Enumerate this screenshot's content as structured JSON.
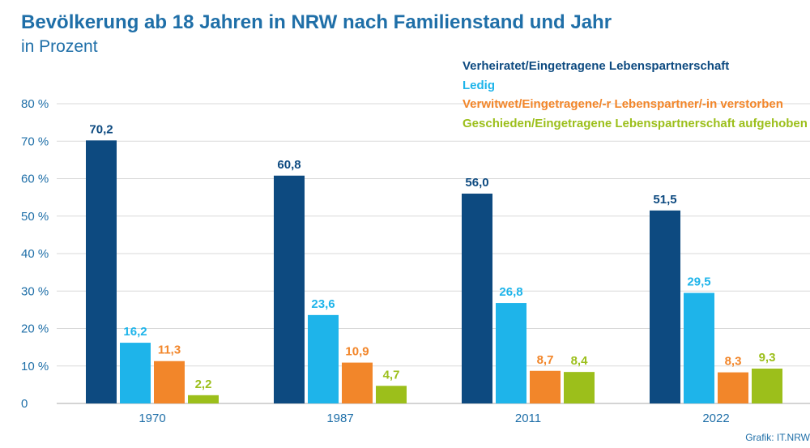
{
  "chart_data": {
    "type": "bar",
    "title": "Bevölkerung ab 18 Jahren in NRW nach Familienstand und Jahr",
    "subtitle": "in Prozent",
    "categories": [
      "1970",
      "1987",
      "2011",
      "2022"
    ],
    "series": [
      {
        "name": "Verheiratet/Eingetragene Lebenspartnerschaft",
        "color": "#0d4a80",
        "values": [
          70.2,
          60.8,
          56.0,
          51.5
        ],
        "labels": [
          "70,2",
          "60,8",
          "56,0",
          "51,5"
        ]
      },
      {
        "name": "Ledig",
        "color": "#1eb4ea",
        "values": [
          16.2,
          23.6,
          26.8,
          29.5
        ],
        "labels": [
          "16,2",
          "23,6",
          "26,8",
          "29,5"
        ]
      },
      {
        "name": "Verwitwet/Eingetragene/-r Lebenspartner/-in verstorben",
        "color": "#f2862a",
        "values": [
          11.3,
          10.9,
          8.7,
          8.3
        ],
        "labels": [
          "11,3",
          "10,9",
          "8,7",
          "8,3"
        ]
      },
      {
        "name": "Geschieden/Eingetragene Lebenspartnerschaft aufgehoben",
        "color": "#9cbf1b",
        "values": [
          2.2,
          4.7,
          8.4,
          9.3
        ],
        "labels": [
          "2,2",
          "4,7",
          "8,4",
          "9,3"
        ]
      }
    ],
    "yticks": [
      "0",
      "10 %",
      "20 %",
      "30 %",
      "40 %",
      "50 %",
      "60 %",
      "70 %",
      "80 %"
    ],
    "ylim": [
      0,
      80
    ],
    "grid": true,
    "legend_position": "top-right",
    "source": "Grafik: IT.NRW"
  }
}
